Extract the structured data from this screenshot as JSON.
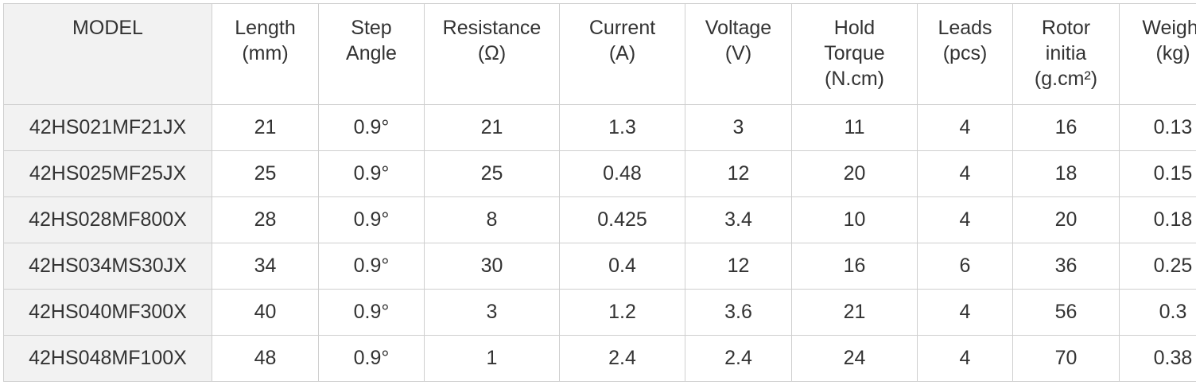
{
  "table": {
    "headers": [
      {
        "key": "model",
        "lines": [
          "MODEL"
        ]
      },
      {
        "key": "length",
        "lines": [
          "Length",
          "(mm)"
        ]
      },
      {
        "key": "step_angle",
        "lines": [
          "Step",
          "Angle"
        ]
      },
      {
        "key": "resistance",
        "lines": [
          "Resistance",
          "(Ω)"
        ]
      },
      {
        "key": "current",
        "lines": [
          "Current",
          "(A)"
        ]
      },
      {
        "key": "voltage",
        "lines": [
          "Voltage",
          "(V)"
        ]
      },
      {
        "key": "hold_torque",
        "lines": [
          "Hold",
          "Torque",
          "(N.cm)"
        ]
      },
      {
        "key": "leads",
        "lines": [
          "Leads",
          "(pcs)"
        ]
      },
      {
        "key": "rotor_inertia",
        "lines": [
          "Rotor",
          "initia",
          "(g.cm²)"
        ]
      },
      {
        "key": "weight",
        "lines": [
          "Weight",
          "(kg)"
        ]
      }
    ],
    "rows": [
      [
        "42HS021MF21JX",
        "21",
        "0.9°",
        "21",
        "1.3",
        "3",
        "11",
        "4",
        "16",
        "0.13"
      ],
      [
        "42HS025MF25JX",
        "25",
        "0.9°",
        "25",
        "0.48",
        "12",
        "20",
        "4",
        "18",
        "0.15"
      ],
      [
        "42HS028MF800X",
        "28",
        "0.9°",
        "8",
        "0.425",
        "3.4",
        "10",
        "4",
        "20",
        "0.18"
      ],
      [
        "42HS034MS30JX",
        "34",
        "0.9°",
        "30",
        "0.4",
        "12",
        "16",
        "6",
        "36",
        "0.25"
      ],
      [
        "42HS040MF300X",
        "40",
        "0.9°",
        "3",
        "1.2",
        "3.6",
        "21",
        "4",
        "56",
        "0.3"
      ],
      [
        "42HS048MF100X",
        "48",
        "0.9°",
        "1",
        "2.4",
        "2.4",
        "24",
        "4",
        "70",
        "0.38"
      ]
    ]
  }
}
